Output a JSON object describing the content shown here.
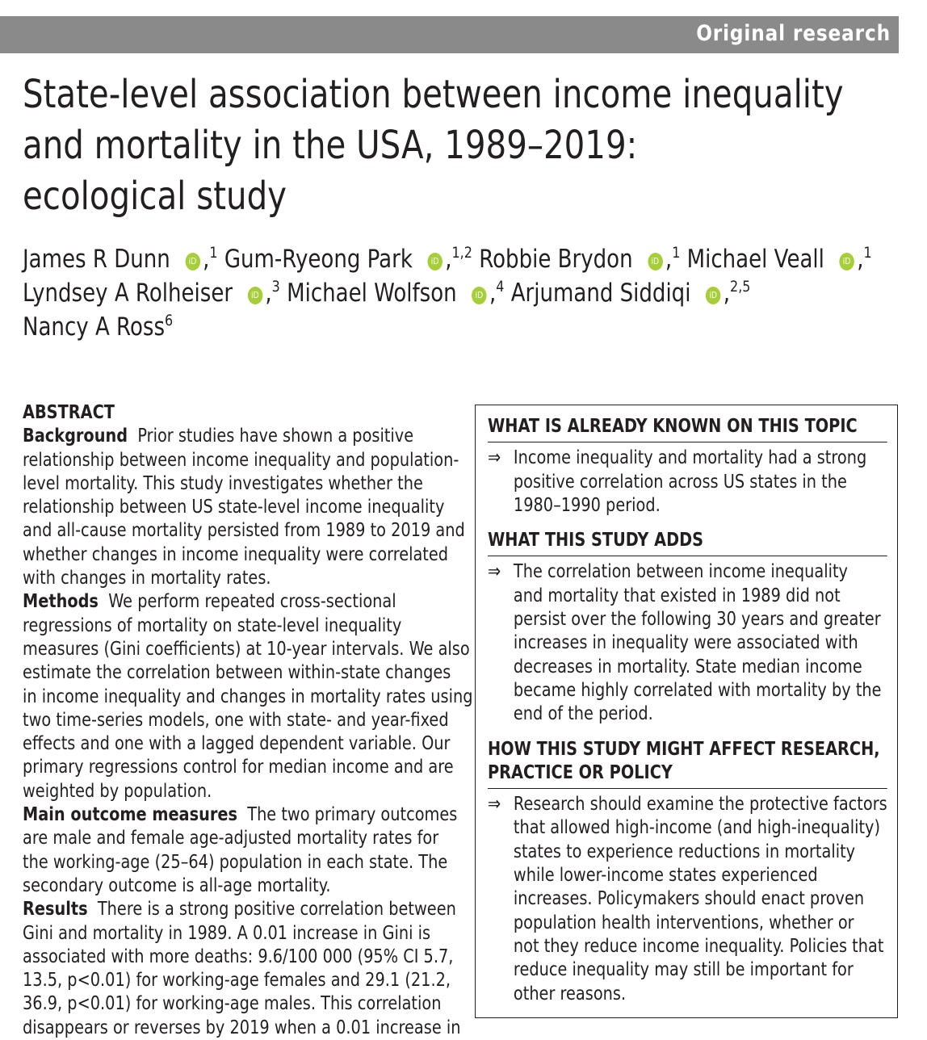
{
  "header": {
    "label": "Original research",
    "band_color": "#8a8a8a"
  },
  "title": {
    "lines": [
      "State-level association between income inequality",
      "and mortality in the USA, 1989–2019:",
      "ecological study"
    ]
  },
  "authors": [
    {
      "name": "James R Dunn",
      "affil": "1",
      "orcid": true
    },
    {
      "name": "Gum-Ryeong Park",
      "affil": "1,2",
      "orcid": true
    },
    {
      "name": "Robbie Brydon",
      "affil": "1",
      "orcid": true
    },
    {
      "name": "Michael Veall",
      "affil": "1",
      "orcid": true
    },
    {
      "name": "Lyndsey A Rolheiser",
      "affil": "3",
      "orcid": true
    },
    {
      "name": "Michael Wolfson",
      "affil": "4",
      "orcid": true
    },
    {
      "name": "Arjumand Siddiqi",
      "affil": "2,5",
      "orcid": true
    },
    {
      "name": "Nancy A Ross",
      "affil": "6",
      "orcid": false
    }
  ],
  "orcid_icon": {
    "label": "iD",
    "color": "#a6ce39"
  },
  "abstract": {
    "heading": "ABSTRACT",
    "sections": [
      {
        "label": "Background",
        "lines": [
          "Prior studies have shown a positive",
          "relationship between income inequality and population-",
          "level mortality. This study investigates whether the",
          "relationship between US state-level income inequality",
          "and all-cause mortality persisted from 1989 to 2019 and",
          "whether changes in income inequality were correlated",
          "with changes in mortality rates."
        ]
      },
      {
        "label": "Methods",
        "lines": [
          "We perform repeated cross-sectional",
          "regressions of mortality on state-level inequality",
          "measures (Gini coefficients) at 10-year intervals. We also",
          "estimate the correlation between within-state changes",
          "in income inequality and changes in mortality rates using",
          "two time-series models, one with state- and year-fixed",
          "effects and one with a lagged dependent variable. Our",
          "primary regressions control for median income and are",
          "weighted by population."
        ]
      },
      {
        "label": "Main outcome measures",
        "lines": [
          "The two primary outcomes",
          "are male and female age-adjusted mortality rates for",
          "the working-age (25–64) population in each state. The",
          "secondary outcome is all-age mortality."
        ]
      },
      {
        "label": "Results",
        "lines": [
          "There is a strong positive correlation between",
          "Gini and mortality in 1989. A 0.01 increase in Gini is",
          "associated with more deaths: 9.6/100 000 (95% CI 5.7,",
          "13.5, p<0.01) for working-age females and 29.1 (21.2,",
          "36.9, p<0.01) for working-age males. This correlation",
          "disappears or reverses by 2019 when a 0.01 increase in"
        ]
      }
    ]
  },
  "box": {
    "sections": [
      {
        "heading_lines": [
          "WHAT IS ALREADY KNOWN ON THIS TOPIC"
        ],
        "bullet_symbol": "⇒",
        "lines": [
          "Income inequality and mortality had a strong",
          "positive correlation across US states in the",
          "1980–1990 period."
        ]
      },
      {
        "heading_lines": [
          "WHAT THIS STUDY ADDS"
        ],
        "bullet_symbol": "⇒",
        "lines": [
          "The correlation between income inequality",
          "and mortality that existed in 1989 did not",
          "persist over the following 30 years and greater",
          "increases in inequality were associated with",
          "decreases in mortality. State median income",
          "became highly correlated with mortality by the",
          "end of the period."
        ]
      },
      {
        "heading_lines": [
          "HOW THIS STUDY MIGHT AFFECT RESEARCH,",
          "PRACTICE OR POLICY"
        ],
        "bullet_symbol": "⇒",
        "lines": [
          "Research should examine the protective factors",
          "that allowed high-income (and high-inequality)",
          "states to experience reductions in mortality",
          "while lower-income states experienced",
          "increases. Policymakers should enact proven",
          "population health interventions, whether or",
          "not they reduce income inequality. Policies that",
          "reduce inequality may still be important for",
          "other reasons."
        ]
      }
    ]
  }
}
